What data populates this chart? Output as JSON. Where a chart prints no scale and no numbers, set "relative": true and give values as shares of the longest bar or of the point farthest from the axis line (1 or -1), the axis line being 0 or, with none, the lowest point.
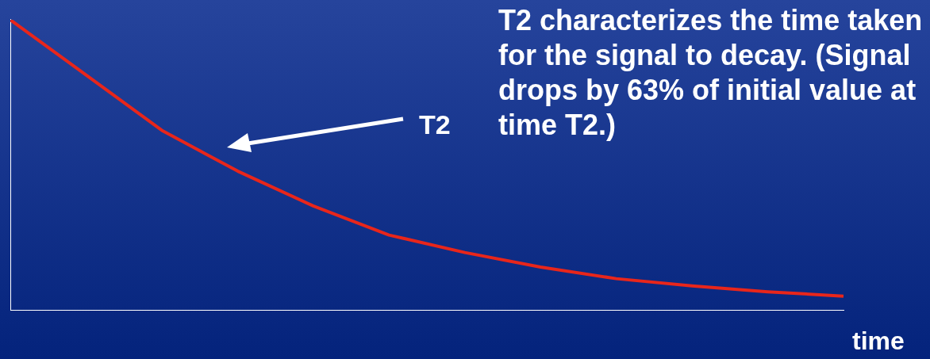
{
  "chart_data": {
    "type": "line",
    "relative": true,
    "xlabel": "time",
    "categories": [
      null,
      null,
      null,
      null,
      null,
      null,
      null,
      null,
      null,
      null,
      null,
      null
    ],
    "series": [
      {
        "color": "#e8261b",
        "values": [
          1,
          0.81,
          0.62,
          0.48,
          0.36,
          0.26,
          0.2,
          0.15,
          0.11,
          0.085,
          0.065,
          0.05
        ]
      }
    ],
    "annotations": [
      "T2",
      "T2 characterizes the time taken for the signal to decay. (Signal drops by 63% of initial value at time T2.)"
    ],
    "marker": "none",
    "line_style": "solid",
    "grid": false,
    "legend": false
  }
}
